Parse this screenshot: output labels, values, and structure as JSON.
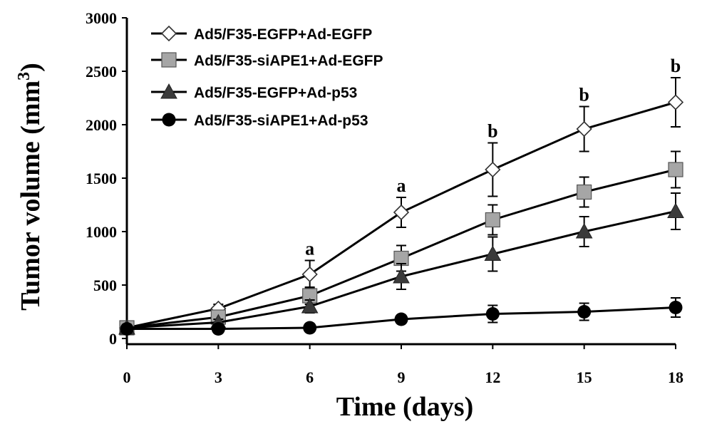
{
  "chart_data": {
    "type": "line",
    "title": "",
    "xlabel": "Time (days)",
    "ylabel": "Tumor volume (mm",
    "ylabel_superscript": "3",
    "ylabel_close": ")",
    "x": [
      0,
      3,
      6,
      9,
      12,
      15,
      18
    ],
    "xticks": [
      "0",
      "3",
      "6",
      "9",
      "12",
      "15",
      "18"
    ],
    "yticks": [
      "0",
      "500",
      "1000",
      "1500",
      "2000",
      "2500",
      "3000"
    ],
    "xlim": [
      0,
      18
    ],
    "ylim": [
      0,
      3000
    ],
    "grid": false,
    "legend_position": "top-left",
    "series": [
      {
        "name": "Ad5/F35-EGFP+Ad-EGFP",
        "marker": "diamond-open",
        "values": [
          100,
          280,
          600,
          1180,
          1580,
          1960,
          2210
        ],
        "errors": [
          30,
          40,
          130,
          140,
          250,
          210,
          230
        ]
      },
      {
        "name": "Ad5/F35-siAPE1+Ad-EGFP",
        "marker": "square-gray",
        "values": [
          100,
          200,
          400,
          750,
          1110,
          1370,
          1580
        ],
        "errors": [
          30,
          40,
          80,
          120,
          140,
          140,
          170
        ]
      },
      {
        "name": "Ad5/F35-EGFP+Ad-p53",
        "marker": "triangle-dark",
        "values": [
          100,
          150,
          300,
          580,
          790,
          1000,
          1190
        ],
        "errors": [
          30,
          30,
          60,
          120,
          160,
          140,
          170
        ]
      },
      {
        "name": "Ad5/F35-siAPE1+Ad-p53",
        "marker": "circle-black",
        "values": [
          90,
          90,
          100,
          180,
          230,
          250,
          290
        ],
        "errors": [
          20,
          20,
          20,
          30,
          80,
          80,
          90
        ]
      }
    ],
    "annotations": [
      {
        "x": 6,
        "y": 730,
        "text": "a"
      },
      {
        "x": 9,
        "y": 1320,
        "text": "a"
      },
      {
        "x": 12,
        "y": 1830,
        "text": "b"
      },
      {
        "x": 15,
        "y": 2170,
        "text": "b"
      },
      {
        "x": 18,
        "y": 2440,
        "text": "b"
      }
    ]
  }
}
